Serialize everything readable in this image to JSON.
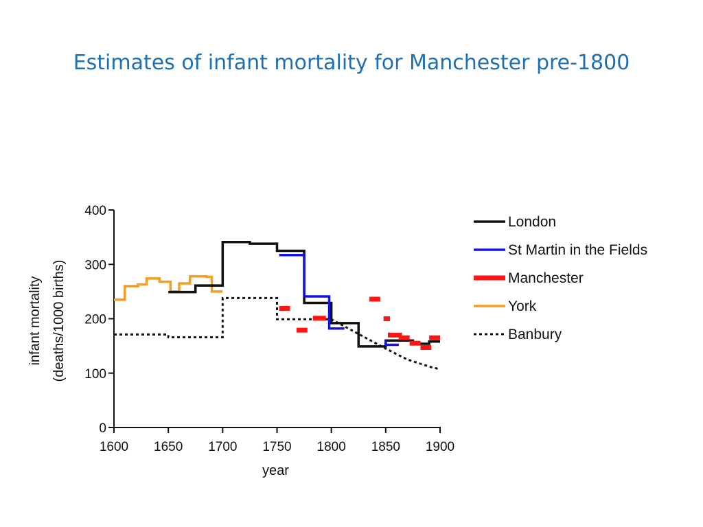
{
  "slide": {
    "title": "Estimates of infant mortality for Manchester pre-1800"
  },
  "chart_data": {
    "type": "line",
    "step": true,
    "title": "",
    "xlabel": "year",
    "ylabel": [
      "infant mortality",
      "(deaths/1000 births)"
    ],
    "xlim": [
      1600,
      1900
    ],
    "ylim": [
      0,
      400
    ],
    "xticks": [
      1600,
      1650,
      1700,
      1750,
      1800,
      1850,
      1900
    ],
    "yticks": [
      0,
      100,
      200,
      300,
      400
    ],
    "legend_position": "right",
    "series": [
      {
        "name": "York",
        "color": "#f59d1f",
        "dash": "solid",
        "steps": [
          [
            1600,
            1610,
            235
          ],
          [
            1610,
            1622,
            260
          ],
          [
            1622,
            1630,
            263
          ],
          [
            1630,
            1642,
            274
          ],
          [
            1642,
            1652,
            268
          ],
          [
            1652,
            1660,
            250
          ],
          [
            1660,
            1670,
            265
          ],
          [
            1670,
            1685,
            278
          ],
          [
            1685,
            1690,
            277
          ],
          [
            1690,
            1700,
            250
          ]
        ]
      },
      {
        "name": "Banbury",
        "color": "#111111",
        "dash": "dotted",
        "steps": [
          [
            1600,
            1650,
            171
          ],
          [
            1650,
            1700,
            166
          ],
          [
            1700,
            1750,
            238
          ],
          [
            1750,
            1800,
            199
          ]
        ],
        "points": [
          [
            1800,
            199
          ],
          [
            1850,
            145
          ],
          [
            1870,
            125
          ],
          [
            1890,
            112
          ],
          [
            1900,
            107
          ]
        ]
      },
      {
        "name": "London",
        "color": "#111111",
        "dash": "solid",
        "steps": [
          [
            1650,
            1675,
            249
          ],
          [
            1675,
            1700,
            261
          ],
          [
            1700,
            1725,
            341
          ],
          [
            1725,
            1750,
            338
          ],
          [
            1750,
            1775,
            325
          ],
          [
            1775,
            1800,
            229
          ],
          [
            1800,
            1825,
            192
          ],
          [
            1825,
            1850,
            149
          ],
          [
            1850,
            1875,
            160
          ],
          [
            1875,
            1890,
            154
          ],
          [
            1890,
            1900,
            158
          ]
        ]
      },
      {
        "name": "St Martin in the Fields",
        "color": "#1414e0",
        "dash": "solid",
        "steps": [
          [
            1752,
            1775,
            317
          ],
          [
            1775,
            1798,
            241
          ],
          [
            1798,
            1812,
            182
          ]
        ],
        "points": [
          [
            1850,
            160
          ],
          [
            1850,
            152
          ],
          [
            1862,
            152
          ]
        ]
      },
      {
        "name": "Manchester",
        "color": "#ff1414",
        "dash": "dashed",
        "steps": [
          [
            1752,
            1762,
            219
          ],
          [
            1768,
            1778,
            179
          ],
          [
            1783,
            1795,
            201
          ],
          [
            1835,
            1845,
            236
          ],
          [
            1848,
            1854,
            200
          ],
          [
            1852,
            1865,
            170
          ],
          [
            1862,
            1872,
            165
          ],
          [
            1872,
            1882,
            155
          ],
          [
            1882,
            1892,
            147
          ],
          [
            1890,
            1900,
            165
          ]
        ]
      }
    ],
    "legend": [
      "London",
      "St Martin in the Fields",
      "Manchester",
      "York",
      "Banbury"
    ]
  }
}
